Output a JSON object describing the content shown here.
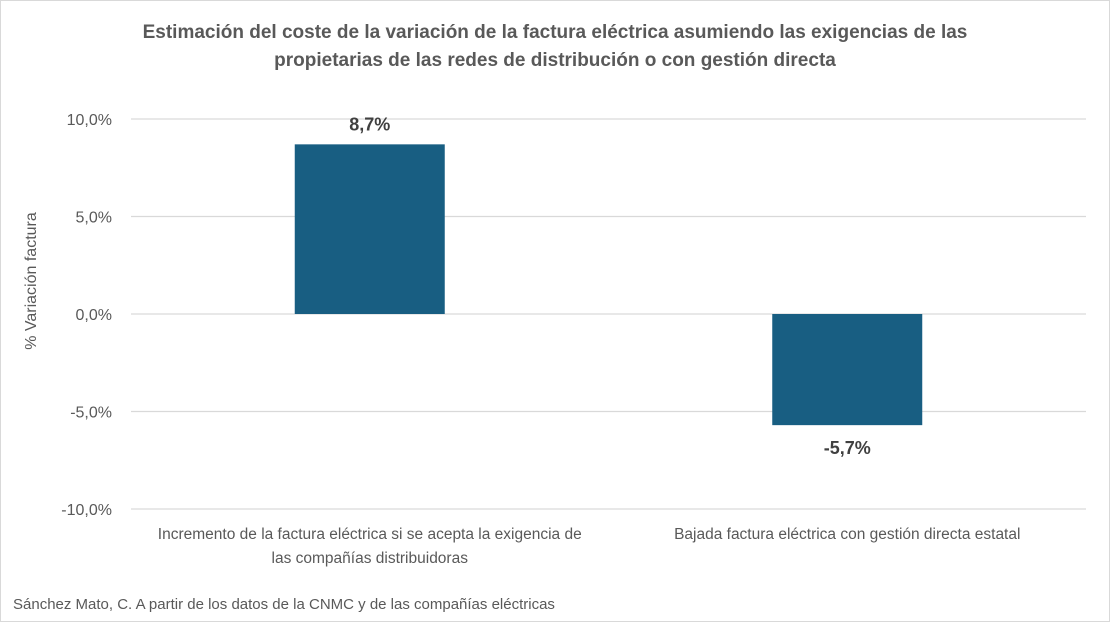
{
  "chart_data": {
    "type": "bar",
    "title_lines": [
      "Estimación del coste de la variación de la factura eléctrica asumiendo las exigencias de las",
      "propietarias de las redes de distribución o con gestión directa"
    ],
    "ylabel": "% Variación factura",
    "xlabel": "",
    "categories": [
      [
        "Incremento de la factura eléctrica si se acepta la exigencia de",
        "las compañías distribuidoras"
      ],
      [
        "Bajada factura eléctrica con gestión directa estatal"
      ]
    ],
    "values": [
      8.7,
      -5.7
    ],
    "data_labels": [
      "8,7%",
      "-5,7%"
    ],
    "ylim": [
      -10,
      10
    ],
    "yticks": [
      10,
      5,
      0,
      -5,
      -10
    ],
    "ytick_labels": [
      "10,0%",
      "5,0%",
      "0,0%",
      "-5,0%",
      "-10,0%"
    ],
    "grid": true,
    "legend": "none",
    "bar_color": "#185e82",
    "source": "Sánchez Mato, C.  A partir de los datos de la CNMC y de las compañías eléctricas"
  }
}
